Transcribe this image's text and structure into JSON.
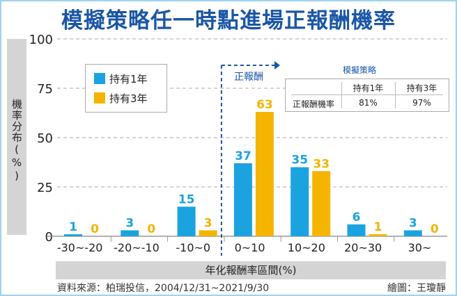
{
  "chart_data": {
    "type": "bar",
    "title": "模擬策略任一時點進場正報酬機率",
    "xlabel": "年化報酬率區間(%)",
    "ylabel": "機率分布(%)",
    "ylim": [
      0,
      100
    ],
    "yticks": [
      0,
      25,
      50,
      75,
      100
    ],
    "grid": true,
    "legend": "top-left",
    "categories": [
      "-30~-20",
      "-20~-10",
      "-10~0",
      "0~10",
      "10~20",
      "20~30",
      "30~"
    ],
    "series": [
      {
        "name": "持有1年",
        "color": "#1ba3e0",
        "values": [
          1,
          3,
          15,
          37,
          35,
          6,
          3
        ]
      },
      {
        "name": "持有3年",
        "color": "#f5b400",
        "values": [
          0,
          0,
          3,
          63,
          33,
          1,
          0
        ]
      }
    ],
    "annotation": "正報酬",
    "table": {
      "title": "模擬策略",
      "headers": [
        "",
        "持有1年",
        "持有3年"
      ],
      "rows": [
        [
          "正報酬機率",
          "81%",
          "97%"
        ]
      ]
    }
  },
  "source": "資料來源：柏瑞投信，2004/12/31~2021/9/30",
  "credit": "繪圖：王瓊靜"
}
